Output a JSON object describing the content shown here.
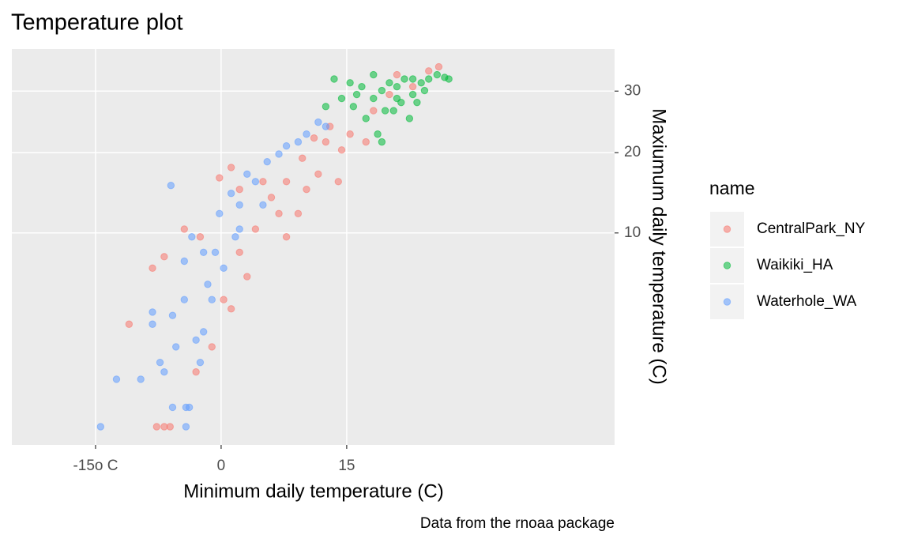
{
  "chart_data": {
    "type": "scatter",
    "title": "Temperature plot",
    "x_label": "Minimum daily temperature (C)",
    "y_label": "Maxiumum daily temperature (C)",
    "caption": "Data from the rnoaa package",
    "legend_title": "name",
    "xlim": [
      -25,
      47
    ],
    "xticks": [
      {
        "value": -15,
        "label": "-15o C"
      },
      0,
      15
    ],
    "ylim": [
      0,
      38
    ],
    "yticks": [
      10,
      20,
      30
    ],
    "y_scale": "sqrt",
    "y_axis_side": "right",
    "grid": true,
    "legend_position": "right",
    "series": [
      {
        "name": "CentralPark_NY",
        "color": "#F8766D",
        "x": [
          -11,
          -7.7,
          -6.8,
          -6.1,
          -8.2,
          -6.8,
          -4.4,
          -2.5,
          -0.2,
          1.2,
          2.2,
          3.1,
          4.1,
          6.0,
          6.9,
          7.8,
          9.2,
          9.7,
          11.6,
          12.5,
          14.0,
          15.4,
          17.3,
          18.2,
          20.1,
          21,
          22.9,
          24.8,
          26,
          0.3,
          1.2,
          -1.1,
          -3.0,
          2.2,
          5.0,
          7.8,
          11.1,
          14.4,
          13.0,
          10.2
        ],
        "values": [
          2.8,
          0,
          0,
          0,
          6.7,
          7.7,
          10.4,
          9.6,
          16.5,
          17.9,
          8.1,
          6.0,
          10.4,
          14.0,
          12.1,
          16.0,
          12.1,
          19.2,
          17.0,
          21.6,
          16.0,
          22.8,
          21.6,
          26.6,
          29.4,
          33.0,
          30.8,
          33.7,
          34.5,
          4.3,
          3.7,
          1.7,
          0.8,
          15.0,
          16.0,
          9.6,
          22.2,
          20.4,
          24.0,
          15.0
        ]
      },
      {
        "name": "Waikiki_HA",
        "color": "#00BA38",
        "x": [
          13.5,
          15.4,
          16.8,
          18.2,
          19.2,
          20.1,
          21,
          21.9,
          22.9,
          23.9,
          24.8,
          25.8,
          26.7,
          27.2,
          15.8,
          17.3,
          18.7,
          19.2,
          20.6,
          21.5,
          22.5,
          23.4,
          12.5,
          14.4,
          16.2,
          18.2,
          19.6,
          21,
          22.9,
          24.3
        ],
        "values": [
          32.2,
          31.5,
          30.8,
          28.7,
          30.1,
          31.5,
          30.8,
          32.2,
          29.4,
          31.5,
          32.2,
          33.0,
          32.5,
          32.2,
          27.3,
          25.3,
          22.8,
          21.6,
          26.6,
          28.0,
          25.3,
          28.0,
          27.3,
          28.7,
          29.4,
          33.0,
          26.6,
          28.7,
          32.2,
          30.1
        ]
      },
      {
        "name": "Waterhole_WA",
        "color": "#619CFF",
        "x": [
          -14.4,
          -12.5,
          -9.6,
          -8.2,
          -5.8,
          -4.2,
          -3.8,
          -4.2,
          -7.3,
          -5.8,
          -4.4,
          -3.0,
          -2.1,
          -1.6,
          -0.7,
          -0.2,
          1.2,
          2.2,
          3.1,
          4.1,
          5.5,
          6.9,
          7.8,
          9.2,
          10.2,
          11.6,
          12.5,
          -6.0,
          -4.4,
          -3.5,
          -5.4,
          -2.5,
          -1.1,
          0.3,
          2.2,
          -8.2,
          -6.8,
          -2.1,
          1.7,
          5.0
        ],
        "values": [
          0,
          0.6,
          0.6,
          2.8,
          0.1,
          0.1,
          0.1,
          0,
          1.1,
          3.3,
          4.3,
          2.0,
          2.4,
          5.4,
          8.1,
          12.1,
          14.5,
          13.1,
          17.0,
          16.0,
          18.7,
          19.8,
          21.0,
          21.6,
          22.8,
          24.7,
          24.0,
          15.5,
          7.3,
          9.6,
          1.7,
          1.1,
          4.3,
          6.7,
          10.4,
          3.5,
          0.8,
          8.1,
          9.6,
          13.1
        ]
      }
    ]
  }
}
